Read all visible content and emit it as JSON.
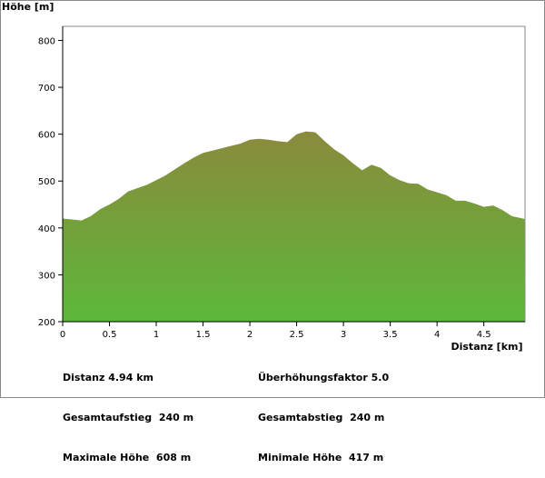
{
  "chart_data": {
    "type": "area",
    "ylabel": "Höhe [m]",
    "xlabel": "Distanz [km]",
    "xlim": [
      0,
      4.94
    ],
    "ylim": [
      200,
      830
    ],
    "xticks": [
      "0",
      "0.5",
      "1",
      "1.5",
      "2",
      "2.5",
      "3",
      "3.5",
      "4",
      "4.5"
    ],
    "xtick_values": [
      0,
      0.5,
      1,
      1.5,
      2,
      2.5,
      3,
      3.5,
      4,
      4.5
    ],
    "yticks": [
      "200",
      "300",
      "400",
      "500",
      "600",
      "700",
      "800"
    ],
    "ytick_values": [
      200,
      300,
      400,
      500,
      600,
      700,
      800
    ],
    "grid": false,
    "fill_top_color": "#8a8a3c",
    "fill_bottom_color": "#5cb83a",
    "x": [
      0,
      0.1,
      0.2,
      0.3,
      0.4,
      0.5,
      0.6,
      0.7,
      0.8,
      0.9,
      1.0,
      1.1,
      1.2,
      1.3,
      1.4,
      1.5,
      1.6,
      1.7,
      1.8,
      1.9,
      2.0,
      2.1,
      2.2,
      2.3,
      2.4,
      2.5,
      2.6,
      2.7,
      2.8,
      2.9,
      3.0,
      3.1,
      3.2,
      3.3,
      3.4,
      3.5,
      3.6,
      3.7,
      3.8,
      3.9,
      4.0,
      4.1,
      4.2,
      4.3,
      4.4,
      4.5,
      4.6,
      4.7,
      4.8,
      4.94
    ],
    "y": [
      420,
      418,
      416,
      425,
      440,
      450,
      462,
      478,
      485,
      492,
      502,
      512,
      525,
      538,
      550,
      560,
      565,
      570,
      575,
      580,
      588,
      590,
      588,
      585,
      583,
      600,
      606,
      604,
      585,
      568,
      555,
      538,
      523,
      535,
      528,
      512,
      502,
      495,
      494,
      482,
      476,
      470,
      458,
      458,
      452,
      445,
      448,
      438,
      425,
      419
    ]
  },
  "stats": {
    "left": [
      {
        "label": "Distanz",
        "value": "4.94 km"
      },
      {
        "label": "Gesamtaufstieg",
        "value": "240 m"
      },
      {
        "label": "Maximale Höhe",
        "value": "608 m"
      }
    ],
    "right": [
      {
        "label": "Überhöhungsfaktor",
        "value": "5.0"
      },
      {
        "label": "Gesamtabstieg",
        "value": "240 m"
      },
      {
        "label": "Minimale Höhe",
        "value": "417 m"
      }
    ]
  }
}
